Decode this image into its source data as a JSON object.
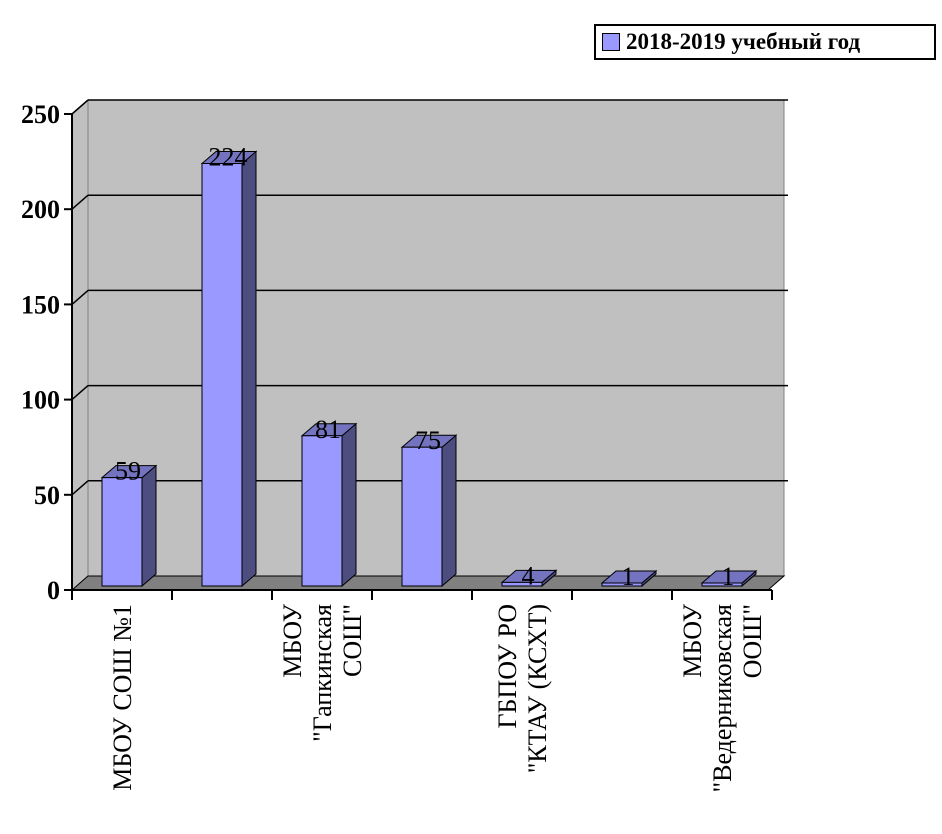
{
  "chart_data": {
    "type": "bar",
    "categories": [
      "МБОУ СОШ №1",
      "",
      "МБОУ \"Гапкинская СОШ\"",
      "",
      "ГБПОУ РО \"КТАУ (КСХТ)",
      "",
      "МБОУ \"Ведерниковская ООШ\""
    ],
    "category_lines": [
      [
        "МБОУ СОШ №1"
      ],
      [],
      [
        "МБОУ",
        "\"Гапкинская",
        "СОШ\""
      ],
      [],
      [
        "ГБПОУ РО",
        "\"КТАУ (КСХТ)"
      ],
      [],
      [
        "МБОУ",
        "\"Ведерниковская",
        "ООШ\""
      ]
    ],
    "series": [
      {
        "name": "2018-2019 учебный год",
        "values": [
          59,
          224,
          81,
          75,
          4,
          1,
          1
        ]
      }
    ],
    "y_ticks": [
      "0",
      "50",
      "100",
      "150",
      "200",
      "250"
    ],
    "ylim": [
      0,
      250
    ],
    "data_labels": [
      "59",
      "224",
      "81",
      "75",
      "4",
      "1",
      "1"
    ],
    "grid": true,
    "legend_position": "top-right",
    "colors": {
      "bar_front": "#9999ff",
      "bar_side": "#4d4d80",
      "bar_top": "#7373bf",
      "plot_wall": "#c0c0c0",
      "floor": "#808080"
    }
  }
}
